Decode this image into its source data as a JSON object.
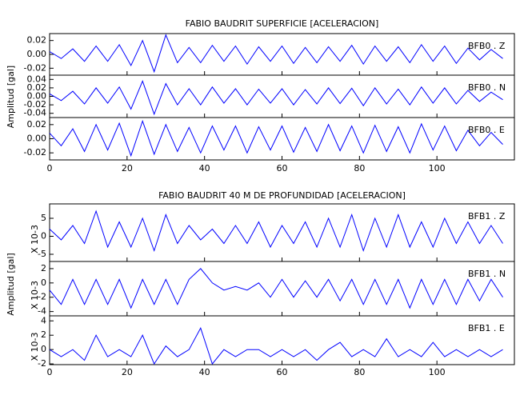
{
  "chart_data": [
    {
      "type": "line",
      "title": "FABIO BAUDRIT SUPERFICIE [ACELERACION]",
      "ylabel": "Amplitud [gal]",
      "xlim": [
        0,
        120
      ],
      "xticks": [
        0,
        20,
        40,
        60,
        80,
        100
      ],
      "x": [
        0,
        3,
        6,
        9,
        12,
        15,
        18,
        21,
        24,
        27,
        30,
        33,
        36,
        39,
        42,
        45,
        48,
        51,
        54,
        57,
        60,
        63,
        66,
        69,
        72,
        75,
        78,
        81,
        84,
        87,
        90,
        93,
        96,
        99,
        102,
        105,
        108,
        111,
        114,
        117
      ],
      "series": [
        {
          "name": "BFB0 . Z",
          "color": "#0000ff",
          "ylim": [
            -0.03,
            0.03
          ],
          "yticks": [
            {
              "value": 0.02,
              "label": "0.02"
            },
            {
              "value": 0,
              "label": "0.00"
            },
            {
              "value": -0.02,
              "label": "-0.02"
            }
          ],
          "values": [
            0.004,
            -0.006,
            0.008,
            -0.01,
            0.012,
            -0.01,
            0.014,
            -0.016,
            0.02,
            -0.025,
            0.028,
            -0.012,
            0.01,
            -0.012,
            0.013,
            -0.01,
            0.012,
            -0.014,
            0.011,
            -0.01,
            0.012,
            -0.013,
            0.01,
            -0.012,
            0.011,
            -0.01,
            0.013,
            -0.014,
            0.012,
            -0.01,
            0.011,
            -0.012,
            0.014,
            -0.01,
            0.012,
            -0.013,
            0.009,
            -0.008,
            0.007,
            -0.006
          ]
        },
        {
          "name": "BFB0 . N",
          "color": "#0000ff",
          "ylim": [
            -0.05,
            0.05
          ],
          "yticks": [
            {
              "value": 0.04,
              "label": "0.04"
            },
            {
              "value": 0.02,
              "label": "0.02"
            },
            {
              "value": 0,
              "label": "0.00"
            },
            {
              "value": -0.02,
              "label": "-0.02"
            },
            {
              "value": -0.04,
              "label": "-0.04"
            }
          ],
          "values": [
            0.006,
            -0.01,
            0.012,
            -0.018,
            0.02,
            -0.016,
            0.022,
            -0.03,
            0.036,
            -0.042,
            0.03,
            -0.02,
            0.018,
            -0.02,
            0.022,
            -0.016,
            0.018,
            -0.02,
            0.017,
            -0.016,
            0.018,
            -0.02,
            0.016,
            -0.018,
            0.02,
            -0.017,
            0.019,
            -0.022,
            0.02,
            -0.018,
            0.017,
            -0.02,
            0.022,
            -0.016,
            0.02,
            -0.018,
            0.014,
            -0.012,
            0.01,
            -0.008
          ]
        },
        {
          "name": "BFB0 . E",
          "color": "#0000ff",
          "ylim": [
            -0.03,
            0.03
          ],
          "yticks": [
            {
              "value": 0.02,
              "label": "0.02"
            },
            {
              "value": 0,
              "label": "0.00"
            },
            {
              "value": -0.02,
              "label": "-0.02"
            }
          ],
          "values": [
            0.008,
            -0.01,
            0.014,
            -0.018,
            0.02,
            -0.016,
            0.022,
            -0.024,
            0.025,
            -0.022,
            0.02,
            -0.018,
            0.016,
            -0.02,
            0.018,
            -0.016,
            0.018,
            -0.02,
            0.017,
            -0.016,
            0.018,
            -0.019,
            0.016,
            -0.018,
            0.02,
            -0.017,
            0.018,
            -0.02,
            0.019,
            -0.018,
            0.017,
            -0.02,
            0.021,
            -0.016,
            0.018,
            -0.017,
            0.012,
            -0.01,
            0.009,
            -0.008
          ]
        }
      ]
    },
    {
      "type": "line",
      "title": "FABIO BAUDRIT 40 M DE PROFUNDIDAD [ACELERACION]",
      "ylabel": "Amplitud [gal]",
      "xlim": [
        0,
        120
      ],
      "xticks": [
        0,
        20,
        40,
        60,
        80,
        100
      ],
      "x": [
        0,
        3,
        6,
        9,
        12,
        15,
        18,
        21,
        24,
        27,
        30,
        33,
        36,
        39,
        42,
        45,
        48,
        51,
        54,
        57,
        60,
        63,
        66,
        69,
        72,
        75,
        78,
        81,
        84,
        87,
        90,
        93,
        96,
        99,
        102,
        105,
        108,
        111,
        114,
        117
      ],
      "series": [
        {
          "name": "BFB1 . Z",
          "color": "#0000ff",
          "unit": "X 10-3",
          "ylim": [
            -7,
            9
          ],
          "yticks": [
            5,
            0,
            -5
          ],
          "values": [
            2,
            -1,
            3,
            -2,
            7,
            -3,
            4,
            -3,
            5,
            -4,
            6,
            -2,
            3,
            -1,
            2,
            -2,
            3,
            -2,
            4,
            -3,
            3,
            -2,
            4,
            -3,
            5,
            -3,
            6,
            -4,
            5,
            -3,
            6,
            -3,
            4,
            -3,
            5,
            -2,
            4,
            -2,
            3,
            -2
          ]
        },
        {
          "name": "BFB1 . N",
          "color": "#0000ff",
          "unit": "X 10-3",
          "ylim": [
            -4.6,
            3
          ],
          "yticks": [
            2,
            0,
            -2,
            -4
          ],
          "values": [
            -1,
            -3,
            0.5,
            -3,
            0.5,
            -3,
            0.5,
            -3.5,
            0.5,
            -3,
            0.5,
            -3,
            0.5,
            2,
            0,
            -1,
            -0.5,
            -1,
            0,
            -2,
            0.5,
            -2,
            0.3,
            -2,
            0.5,
            -2.5,
            0.5,
            -3,
            0.5,
            -3,
            0.5,
            -3.5,
            0.5,
            -3,
            0.5,
            -3,
            0.5,
            -2.5,
            0.5,
            -2
          ]
        },
        {
          "name": "BFB1 . E",
          "color": "#0000ff",
          "unit": "X 10-3",
          "ylim": [
            -2.1,
            4.7
          ],
          "yticks": [
            4,
            2,
            0,
            -2
          ],
          "values": [
            0,
            -1,
            0,
            -1.5,
            2,
            -1,
            0,
            -1,
            2,
            -2,
            0.5,
            -1,
            0,
            3,
            -2,
            0,
            -1,
            0,
            0,
            -1,
            0,
            -1,
            0,
            -1.5,
            0,
            1,
            -1,
            0,
            -1,
            1.5,
            -1,
            0,
            -1,
            1,
            -1,
            0,
            -1,
            0,
            -1,
            0
          ]
        }
      ]
    }
  ]
}
